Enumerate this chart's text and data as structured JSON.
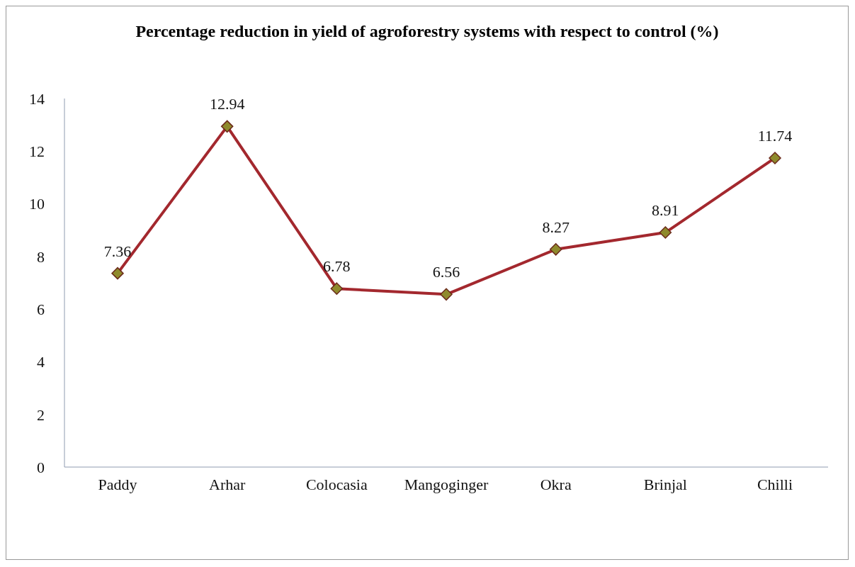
{
  "chart_data": {
    "type": "line",
    "title": "Percentage reduction in yield of agroforestry systems with respect to control (%)",
    "categories": [
      "Paddy",
      "Arhar",
      "Colocasia",
      "Mangoginger",
      "Okra",
      "Brinjal",
      "Chilli"
    ],
    "values": [
      7.36,
      12.94,
      6.78,
      6.56,
      8.27,
      8.91,
      11.74
    ],
    "color": "#a3282e",
    "marker": "diamond",
    "data_labels": true,
    "ylim": [
      0,
      14
    ],
    "yticks": [
      0,
      2,
      4,
      6,
      8,
      10,
      12,
      14
    ]
  }
}
